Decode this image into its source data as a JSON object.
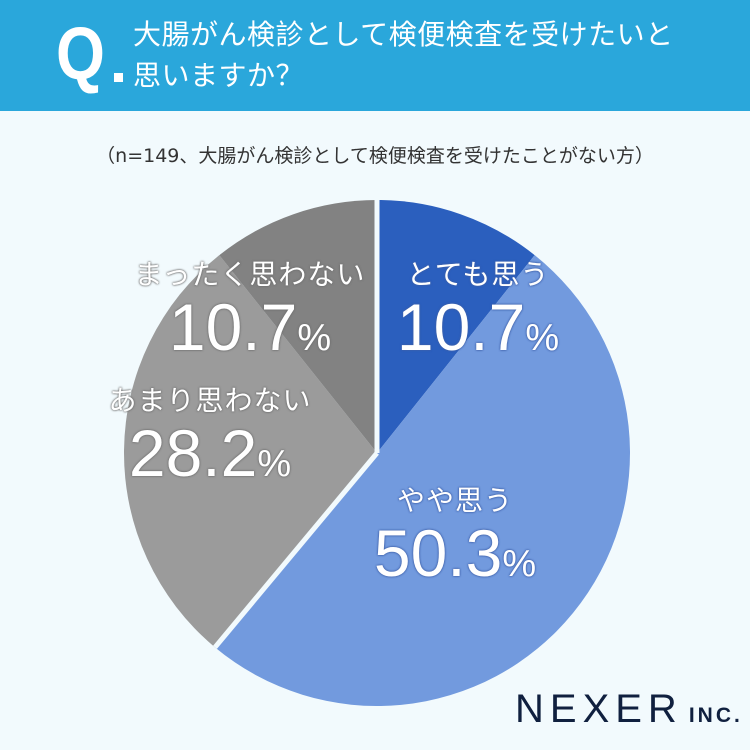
{
  "header": {
    "q_mark": "Q",
    "question_line1": "大腸がん検診として検便検査を受けたいと",
    "question_line2": "思いますか？"
  },
  "subtitle": "（n=149、大腸がん検診として検便検査を受けたことがない方）",
  "slices": [
    {
      "label": "とても思う",
      "value": "10.7",
      "unit": "%",
      "color": "#2b5fbe"
    },
    {
      "label": "やや思う",
      "value": "50.3",
      "unit": "%",
      "color": "#729ade"
    },
    {
      "label": "あまり思わない",
      "value": "28.2",
      "unit": "%",
      "color": "#9b9b9b"
    },
    {
      "label": "まったく思わない",
      "value": "10.7",
      "unit": "%",
      "color": "#828282"
    }
  ],
  "logo": {
    "name": "NEXER",
    "suffix": "INC."
  },
  "chart_data": {
    "type": "pie",
    "title": "大腸がん検診として検便検査を受けたいと思いますか？",
    "subtitle": "（n=149、大腸がん検診として検便検査を受けたことがない方）",
    "categories": [
      "とても思う",
      "やや思う",
      "あまり思わない",
      "まったく思わない"
    ],
    "values": [
      10.7,
      50.3,
      28.2,
      10.7
    ],
    "unit": "%",
    "colors": [
      "#2b5fbe",
      "#729ade",
      "#9b9b9b",
      "#828282"
    ],
    "start_angle": "12 o'clock, clockwise",
    "legend": "labels inside slices"
  }
}
